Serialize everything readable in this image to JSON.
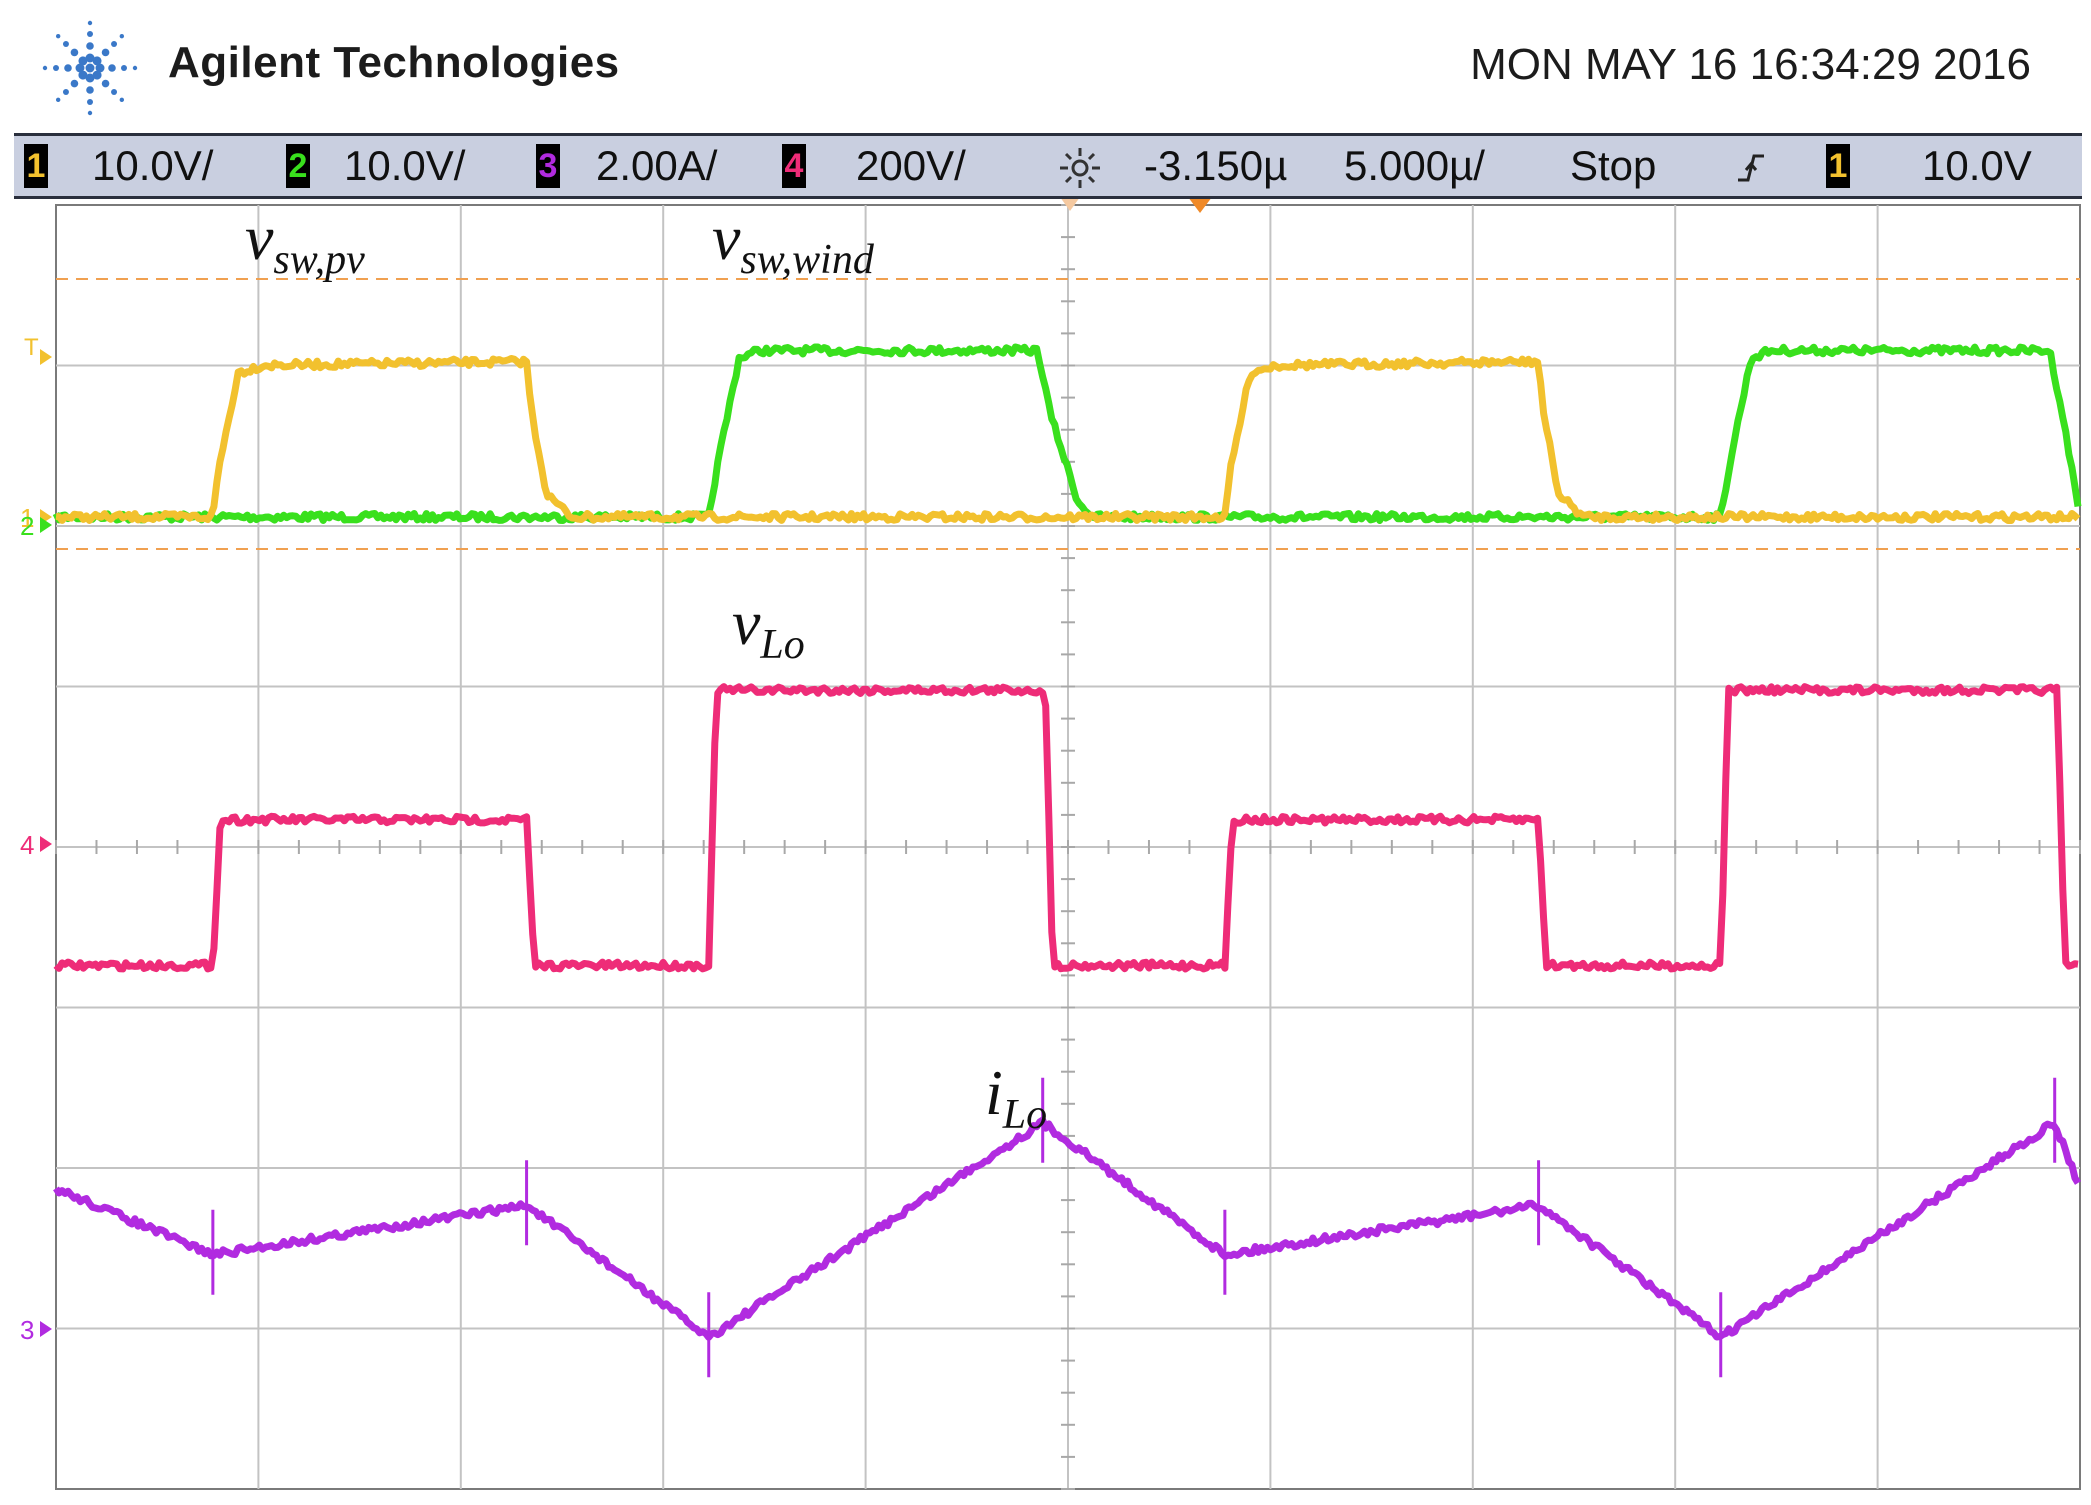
{
  "header": {
    "brand": "Agilent Technologies",
    "datetime": "MON MAY 16 16:34:29 2016",
    "logo_icon": "agilent-spark-icon",
    "logo_color": "#3a78c8"
  },
  "status_bar": {
    "ch1": {
      "num": "1",
      "scale": "10.0V/",
      "color": "#f2c12e"
    },
    "ch2": {
      "num": "2",
      "scale": "10.0V/",
      "color": "#39e01d"
    },
    "ch3": {
      "num": "3",
      "scale": "2.00A/",
      "color": "#b12be0"
    },
    "ch4": {
      "num": "4",
      "scale": "200V/",
      "color": "#ee2c78"
    },
    "delay_icon": "sun-delay-icon",
    "delay": "-3.150µ",
    "timebase": "5.000µ/",
    "run_state": "Stop",
    "trigger_edge_icon": "rising-edge-trigger-icon",
    "trigger_source": "1",
    "trigger_level": "10.0V"
  },
  "chart_data": {
    "type": "line",
    "x_unit": "µs",
    "x_range": [
      -20,
      20
    ],
    "grid": true,
    "grid_divisions": {
      "x": 10,
      "y": 8
    },
    "marker_labels": {
      "ch1": "1",
      "ch2": "2",
      "ch3": "3",
      "ch4": "4",
      "trigger": "T"
    },
    "series": [
      {
        "id": "ch1",
        "name": "v",
        "name_sub": "sw,pv",
        "color": "#f2c12e",
        "x": [
          -20,
          -16.9,
          -16.8,
          -16.4,
          -15.9,
          -10.7,
          -10.6,
          -10.3,
          -9.8,
          -20
        ],
        "y": [
          0,
          0,
          0.6,
          1.95,
          2.05,
          2.1,
          1.4,
          0.3,
          0,
          0
        ],
        "periods": 2,
        "period_us": 20
      },
      {
        "id": "ch2",
        "name": "v",
        "name_sub": "sw,wind",
        "color": "#39e01d",
        "x": [
          -20,
          -7.1,
          -6.9,
          -6.5,
          -6.1,
          -0.6,
          -0.35,
          0.2,
          0.5,
          -20
        ],
        "y": [
          0,
          0,
          0.8,
          2.15,
          2.25,
          2.25,
          1.4,
          0.2,
          0,
          0
        ],
        "periods": 2,
        "period_us": 20
      },
      {
        "id": "ch4",
        "name": "v",
        "name_sub": "Lo",
        "color": "#ee2c78",
        "x": [
          -20,
          -16.9,
          -16.75,
          -10.7,
          -10.55,
          -7.1,
          -6.95,
          -0.45,
          -0.3
        ],
        "y": [
          -0.75,
          -0.75,
          0.15,
          0.15,
          -0.75,
          -0.75,
          0.95,
          0.95,
          -0.75
        ],
        "periods": 2,
        "period_us": 20
      },
      {
        "id": "ch3",
        "name": "i",
        "name_sub": "Lo",
        "color": "#b12be0",
        "x": [
          -20,
          -16.9,
          -10.7,
          -7.1,
          -0.5
        ],
        "y": [
          0.85,
          0.45,
          0.75,
          -0.05,
          1.25
        ],
        "periods": 2,
        "period_us": 20
      }
    ]
  }
}
